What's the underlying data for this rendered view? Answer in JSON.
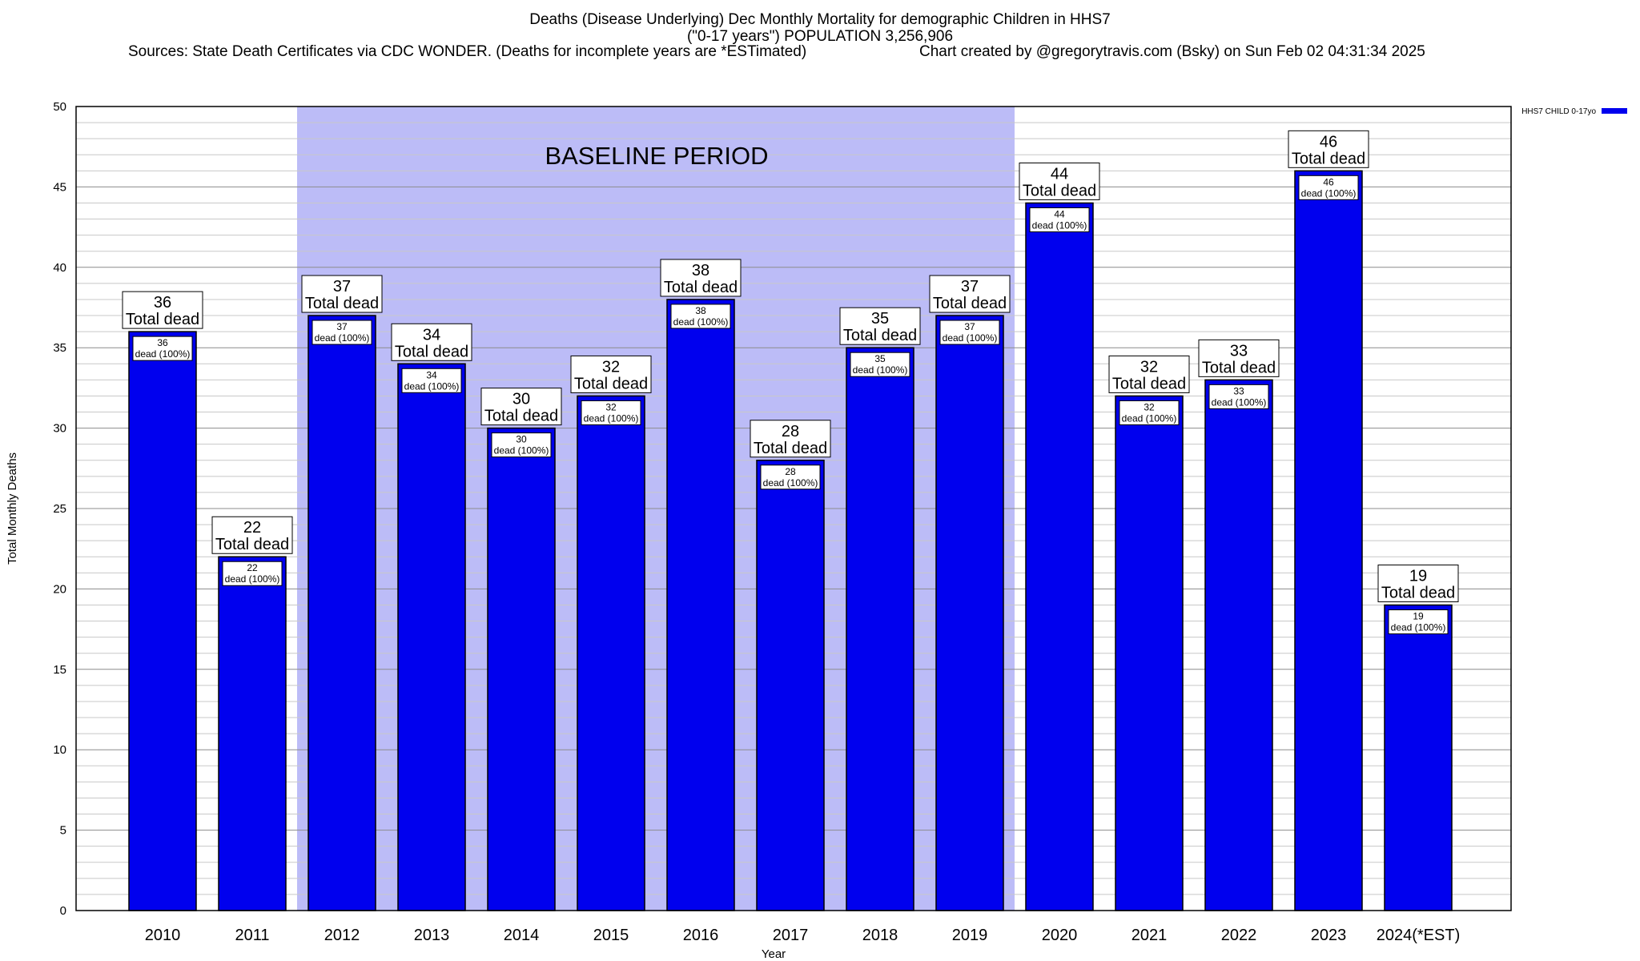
{
  "chart_data": {
    "type": "bar",
    "title": "Deaths (Disease Underlying) Dec Monthly Mortality for demographic Children in HHS7",
    "subtitle": "(\"0-17 years\") POPULATION 3,256,906",
    "sources": "Sources: State Death Certificates via CDC WONDER. (Deaths for incomplete years are *ESTimated)",
    "credit": "Chart created by @gregorytravis.com (Bsky) on Sun Feb 02 04:31:34 2025",
    "xlabel": "Year",
    "ylabel": "Total Monthly Deaths",
    "ylim": [
      0,
      50
    ],
    "yticks": [
      0,
      5,
      10,
      15,
      20,
      25,
      30,
      35,
      40,
      45,
      50
    ],
    "minor_grid_step": 1,
    "categories": [
      "2010",
      "2011",
      "2012",
      "2013",
      "2014",
      "2015",
      "2016",
      "2017",
      "2018",
      "2019",
      "2020",
      "2021",
      "2022",
      "2023",
      "2024(*EST)"
    ],
    "series": [
      {
        "name": "HHS7 CHILD 0-17yo",
        "color": "#0000ee",
        "values": [
          36,
          22,
          37,
          34,
          30,
          32,
          38,
          28,
          35,
          37,
          44,
          32,
          33,
          46,
          19
        ]
      }
    ],
    "total_label_suffix": "Total dead",
    "inner_label_suffix": "dead (100%)",
    "baseline": {
      "label": "BASELINE PERIOD",
      "from": "2012",
      "to": "2019",
      "color": "#bcbcf7"
    },
    "legend": {
      "placement": "right",
      "label": "HHS7 CHILD 0-17yo"
    }
  }
}
